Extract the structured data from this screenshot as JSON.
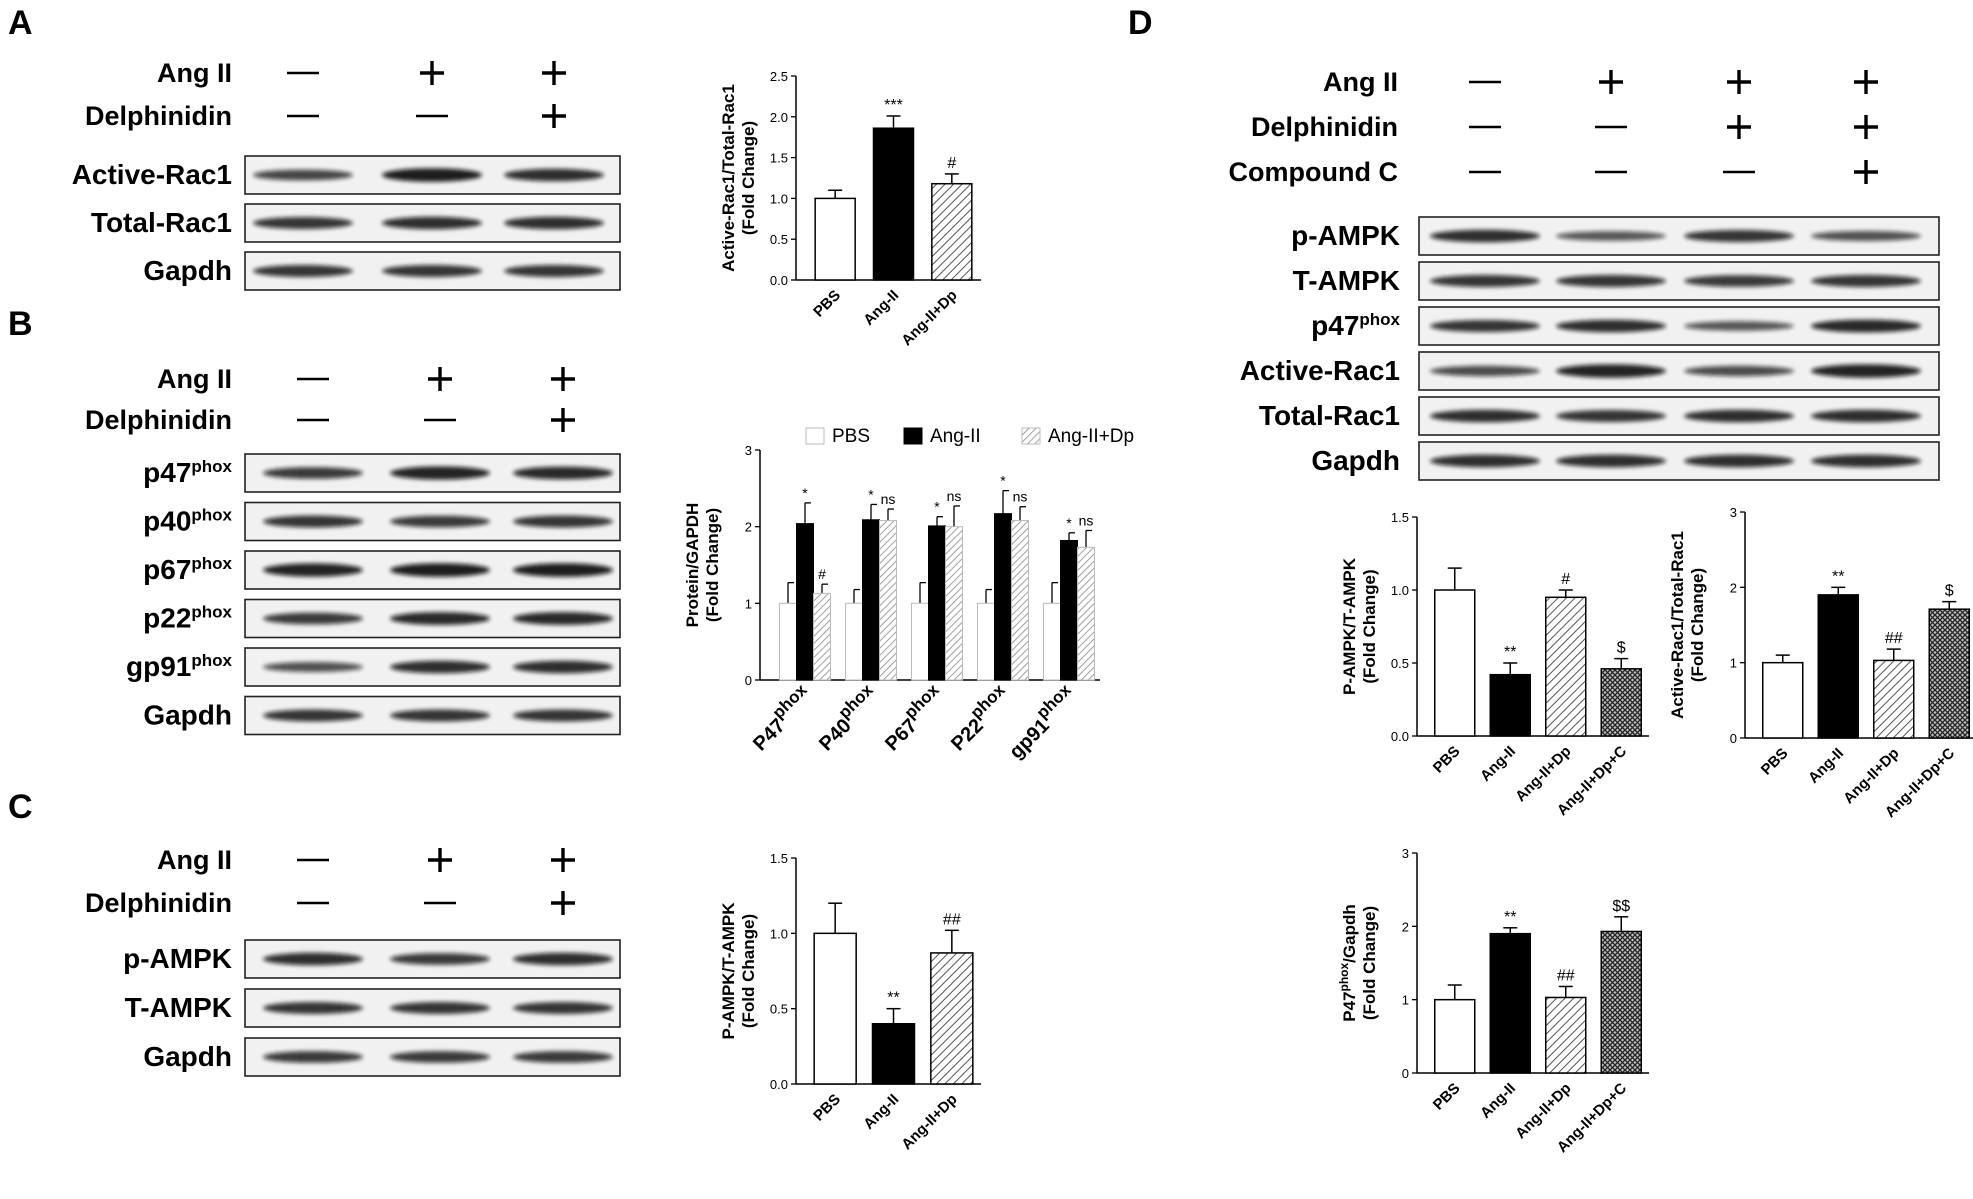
{
  "panels": {
    "A": {
      "label": "A",
      "treatments": [
        {
          "name": "Ang II",
          "signs": [
            "—",
            "+",
            "+"
          ]
        },
        {
          "name": "Delphinidin",
          "signs": [
            "—",
            "—",
            "+"
          ]
        }
      ],
      "blots": [
        {
          "label": "Active-Rac1"
        },
        {
          "label": "Total-Rac1"
        },
        {
          "label": "Gapdh"
        }
      ]
    },
    "B": {
      "label": "B",
      "treatments": [
        {
          "name": "Ang II",
          "signs": [
            "—",
            "+",
            "+"
          ]
        },
        {
          "name": "Delphinidin",
          "signs": [
            "—",
            "—",
            "+"
          ]
        }
      ],
      "blots": [
        {
          "label": "p47",
          "sup": "phox"
        },
        {
          "label": "p40",
          "sup": "phox"
        },
        {
          "label": "p67",
          "sup": "phox"
        },
        {
          "label": "p22",
          "sup": "phox"
        },
        {
          "label": "gp91",
          "sup": "phox"
        },
        {
          "label": "Gapdh"
        }
      ]
    },
    "C": {
      "label": "C",
      "treatments": [
        {
          "name": "Ang II",
          "signs": [
            "—",
            "+",
            "+"
          ]
        },
        {
          "name": "Delphinidin",
          "signs": [
            "—",
            "—",
            "+"
          ]
        }
      ],
      "blots": [
        {
          "label": "p-AMPK"
        },
        {
          "label": "T-AMPK"
        },
        {
          "label": "Gapdh"
        }
      ]
    },
    "D": {
      "label": "D",
      "treatments": [
        {
          "name": "Ang II",
          "signs": [
            "—",
            "+",
            "+",
            "+"
          ]
        },
        {
          "name": "Delphinidin",
          "signs": [
            "—",
            "—",
            "+",
            "+"
          ]
        },
        {
          "name": "Compound C",
          "signs": [
            "—",
            "—",
            "—",
            "+"
          ]
        }
      ],
      "blots": [
        {
          "label": "p-AMPK"
        },
        {
          "label": "T-AMPK"
        },
        {
          "label": "p47",
          "sup": "phox"
        },
        {
          "label": "Active-Rac1"
        },
        {
          "label": "Total-Rac1"
        },
        {
          "label": "Gapdh"
        }
      ]
    }
  },
  "chart_data": [
    {
      "id": "A",
      "type": "bar",
      "ylabel": [
        "Active-Rac1/Total-Rac1",
        "(Fold Change)"
      ],
      "ylim": [
        0,
        2.5
      ],
      "yticks": [
        "0.0",
        "0.5",
        "1.0",
        "1.5",
        "2.0",
        "2.5"
      ],
      "categories": [
        "PBS",
        "Ang-II",
        "Ang-II+Dp"
      ],
      "values": [
        1.0,
        1.86,
        1.18
      ],
      "errors": [
        0.1,
        0.15,
        0.12
      ],
      "significance": [
        "",
        "***",
        "#"
      ]
    },
    {
      "id": "B",
      "type": "bar",
      "ylabel": [
        "Protein/GAPDH",
        "(Fold Change)"
      ],
      "ylim": [
        0,
        3
      ],
      "yticks": [
        "0",
        "1",
        "2",
        "3"
      ],
      "categories": [
        {
          "base": "P47",
          "sup": "phox"
        },
        {
          "base": "P40",
          "sup": "phox"
        },
        {
          "base": "P67",
          "sup": "phox"
        },
        {
          "base": "P22",
          "sup": "phox"
        },
        {
          "base": "gp91",
          "sup": "phox"
        }
      ],
      "legend": [
        "PBS",
        "Ang-II",
        "Ang-II+Dp"
      ],
      "series": [
        {
          "name": "PBS",
          "values": [
            1.0,
            1.0,
            1.0,
            1.0,
            1.0
          ],
          "errors": [
            0.27,
            0.18,
            0.27,
            0.18,
            0.27
          ],
          "significance": [
            "",
            "",
            "",
            "",
            ""
          ]
        },
        {
          "name": "Ang-II",
          "values": [
            2.04,
            2.09,
            2.01,
            2.17,
            1.82
          ],
          "errors": [
            0.27,
            0.2,
            0.12,
            0.3,
            0.1
          ],
          "significance": [
            "*",
            "*",
            "*",
            "*",
            "*"
          ]
        },
        {
          "name": "Ang-II+Dp",
          "values": [
            1.13,
            2.08,
            2.0,
            2.08,
            1.73
          ],
          "errors": [
            0.12,
            0.15,
            0.27,
            0.18,
            0.22
          ],
          "significance": [
            "#",
            "ns",
            "ns",
            "ns",
            "ns"
          ]
        }
      ]
    },
    {
      "id": "C",
      "type": "bar",
      "ylabel": [
        "P-AMPK/T-AMPK",
        "(Fold Change)"
      ],
      "ylim": [
        0,
        1.5
      ],
      "yticks": [
        "0.0",
        "0.5",
        "1.0",
        "1.5"
      ],
      "categories": [
        "PBS",
        "Ang-II",
        "Ang-II+Dp"
      ],
      "values": [
        1.0,
        0.4,
        0.87
      ],
      "errors": [
        0.2,
        0.1,
        0.15
      ],
      "significance": [
        "",
        "**",
        "##"
      ]
    },
    {
      "id": "D1",
      "type": "bar",
      "ylabel": [
        "P-AMPK/T-AMPK",
        "(Fold Change)"
      ],
      "ylim": [
        0,
        1.5
      ],
      "yticks": [
        "0.0",
        "0.5",
        "1.0",
        "1.5"
      ],
      "categories": [
        "PBS",
        "Ang-II",
        "Ang-II+Dp",
        "Ang-II+Dp+C"
      ],
      "values": [
        1.0,
        0.42,
        0.95,
        0.46
      ],
      "errors": [
        0.15,
        0.08,
        0.05,
        0.07
      ],
      "significance": [
        "",
        "**",
        "#",
        "$"
      ]
    },
    {
      "id": "D2",
      "type": "bar",
      "ylabel": [
        "Active-Rac1/Total-Rac1",
        "(Fold Change)"
      ],
      "ylim": [
        0,
        3
      ],
      "yticks": [
        "0",
        "1",
        "2",
        "3"
      ],
      "categories": [
        "PBS",
        "Ang-II",
        "Ang-II+Dp",
        "Ang-II+Dp+C"
      ],
      "values": [
        1.0,
        1.9,
        1.03,
        1.71
      ],
      "errors": [
        0.1,
        0.1,
        0.15,
        0.1
      ],
      "significance": [
        "",
        "**",
        "##",
        "$"
      ]
    },
    {
      "id": "D3",
      "type": "bar",
      "ylabel": [
        {
          "base": "P47",
          "sup": "phox",
          "rest": "/Gapdh"
        },
        "(Fold Change)"
      ],
      "ylim": [
        0,
        3
      ],
      "yticks": [
        "0",
        "1",
        "2",
        "3"
      ],
      "categories": [
        "PBS",
        "Ang-II",
        "Ang-II+Dp",
        "Ang-II+Dp+C"
      ],
      "values": [
        1.0,
        1.9,
        1.03,
        1.93
      ],
      "errors": [
        0.2,
        0.08,
        0.15,
        0.2
      ],
      "significance": [
        "",
        "**",
        "##",
        "$$"
      ]
    }
  ]
}
